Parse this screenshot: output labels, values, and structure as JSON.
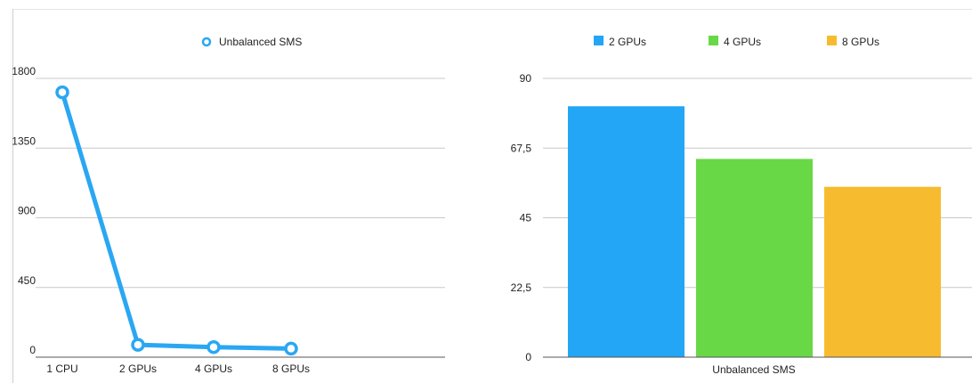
{
  "chart_data": [
    {
      "type": "line",
      "categories": [
        "1 CPU",
        "2 GPUs",
        "4 GPUs",
        "8 GPUs"
      ],
      "series": [
        {
          "name": "Unbalanced SMS",
          "values": [
            1710,
            80,
            65,
            55
          ],
          "color": "#2aa7f3"
        }
      ],
      "ylim": [
        0,
        1800
      ],
      "yticks": [
        "0",
        "450",
        "900",
        "1350",
        "1800"
      ],
      "grid": true,
      "legend": "top-center"
    },
    {
      "type": "bar",
      "categories": [
        "Unbalanced SMS"
      ],
      "series": [
        {
          "name": "2 GPUs",
          "values": [
            81
          ],
          "color": "#22a6f5"
        },
        {
          "name": "4 GPUs",
          "values": [
            64
          ],
          "color": "#68d847"
        },
        {
          "name": "8 GPUs",
          "values": [
            55
          ],
          "color": "#f7bb30"
        }
      ],
      "ylim": [
        0,
        90
      ],
      "yticks": [
        "0",
        "22,5",
        "45",
        "67,5",
        "90"
      ],
      "grid": true,
      "legend": "top-center"
    }
  ]
}
